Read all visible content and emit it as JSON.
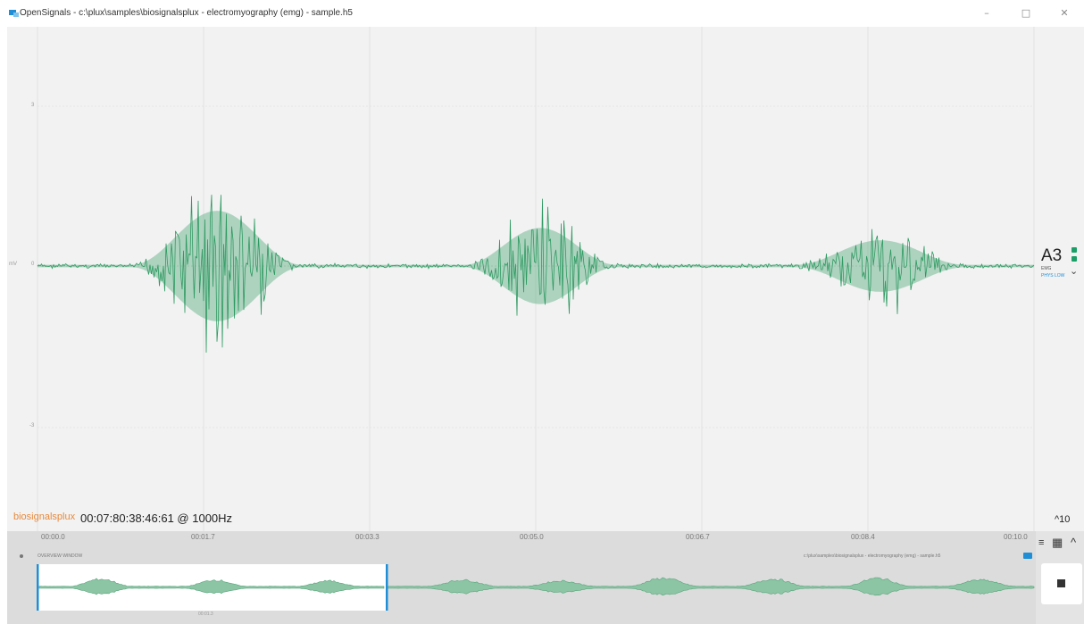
{
  "window": {
    "title": "OpenSignals - c:\\plux\\samples\\biosignalsplux - electromyography (emg) - sample.h5",
    "minimize": "–",
    "maximize": "□",
    "close": "✕"
  },
  "plot": {
    "y_ticks": [
      "3",
      "mV",
      "0",
      "-3"
    ],
    "line_color": "#2e9a62"
  },
  "channel": {
    "name": "A3",
    "type": "EMG",
    "sensor": "PHYS LOW"
  },
  "status": {
    "logo": "biosignalsplux",
    "timestamp": "00:07:80:38:46:61 @ 1000Hz",
    "collapse_label": "^10"
  },
  "timeline": {
    "ticks": [
      "00:00.0",
      "00:01.7",
      "00:03.3",
      "00:05.0",
      "00:06.7",
      "00:08.4",
      "00:10.0"
    ],
    "overview_label": "OVERVIEW WINDOW",
    "file_path": "c:\\plux\\samples\\biosignalsplux - electromyography (emg) - sample.h5",
    "overview_tick": "00:01.3"
  },
  "controls": {
    "menu_icon": "≡",
    "grid_icon": "▦",
    "chevron_icon": "^"
  },
  "colors": {
    "accent": "#1f8ed6",
    "signal": "#2e9a62",
    "brand": "#e8893b"
  }
}
